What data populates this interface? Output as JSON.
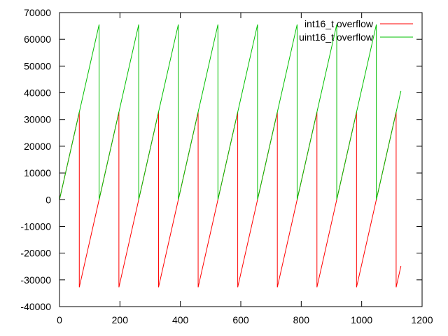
{
  "chart_data": {
    "type": "line",
    "title": "",
    "xlabel": "",
    "ylabel": "",
    "xlim": [
      0,
      1200
    ],
    "ylim": [
      -40000,
      70000
    ],
    "xticks": [
      0,
      200,
      400,
      600,
      800,
      1000,
      1200
    ],
    "yticks": [
      -40000,
      -30000,
      -20000,
      -10000,
      0,
      10000,
      20000,
      30000,
      40000,
      50000,
      60000,
      70000
    ],
    "grid": false,
    "legend_position": "top-right",
    "series": [
      {
        "name": "int16_t overflow",
        "color": "#ff0000",
        "points": [
          [
            0,
            0
          ],
          [
            65.5,
            32767
          ],
          [
            65.5,
            -32768
          ],
          [
            196.6,
            32767
          ],
          [
            196.6,
            -32768
          ],
          [
            327.7,
            32767
          ],
          [
            327.7,
            -32768
          ],
          [
            458.8,
            32767
          ],
          [
            458.8,
            -32768
          ],
          [
            589.8,
            32767
          ],
          [
            589.8,
            -32768
          ],
          [
            720.9,
            32767
          ],
          [
            720.9,
            -32768
          ],
          [
            852,
            32767
          ],
          [
            852,
            -32768
          ],
          [
            983,
            32767
          ],
          [
            983,
            -32768
          ],
          [
            1114.1,
            32767
          ],
          [
            1114.1,
            -32768
          ],
          [
            1130,
            -24800
          ]
        ]
      },
      {
        "name": "uint16_t overflow",
        "color": "#00c000",
        "points": [
          [
            0,
            0
          ],
          [
            131.1,
            65535
          ],
          [
            131.1,
            0
          ],
          [
            262.1,
            65535
          ],
          [
            262.1,
            0
          ],
          [
            393.2,
            65535
          ],
          [
            393.2,
            0
          ],
          [
            524.3,
            65535
          ],
          [
            524.3,
            0
          ],
          [
            655.4,
            65535
          ],
          [
            655.4,
            0
          ],
          [
            786.4,
            65535
          ],
          [
            786.4,
            0
          ],
          [
            917.5,
            65535
          ],
          [
            917.5,
            0
          ],
          [
            1048.6,
            65535
          ],
          [
            1048.6,
            0
          ],
          [
            1130,
            40700
          ]
        ]
      }
    ]
  }
}
